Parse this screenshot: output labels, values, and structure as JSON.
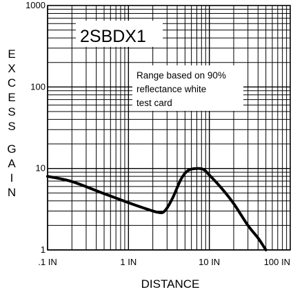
{
  "chart_data": {
    "type": "line",
    "title": "2SBDX1",
    "xlabel": "DISTANCE",
    "ylabel": "EXCESS GAIN",
    "x_scale": "log",
    "y_scale": "log",
    "xlim": [
      0.1,
      100
    ],
    "ylim": [
      1,
      1000
    ],
    "x_ticks": [
      0.1,
      1,
      10,
      100
    ],
    "x_tick_labels": [
      ".1 IN",
      "1 IN",
      "10 IN",
      "100 IN"
    ],
    "y_ticks": [
      1,
      10,
      100,
      1000
    ],
    "y_tick_labels": [
      "1",
      "10",
      "100",
      "1000"
    ],
    "grid": true,
    "annotation": [
      "Range based on 90%",
      "reflectance white",
      "test card"
    ],
    "series": [
      {
        "x": [
          0.1,
          0.2,
          0.5,
          1,
          1.5,
          2.3,
          2.8,
          3.5,
          4.5,
          5.5,
          7,
          8.5,
          10,
          14,
          20,
          30,
          40,
          50
        ],
        "y": [
          8,
          6.9,
          4.9,
          3.8,
          3.3,
          2.9,
          3.0,
          4.3,
          7.5,
          9.5,
          10,
          9.7,
          8.3,
          5.8,
          3.7,
          2.0,
          1.4,
          1.0
        ]
      }
    ]
  }
}
